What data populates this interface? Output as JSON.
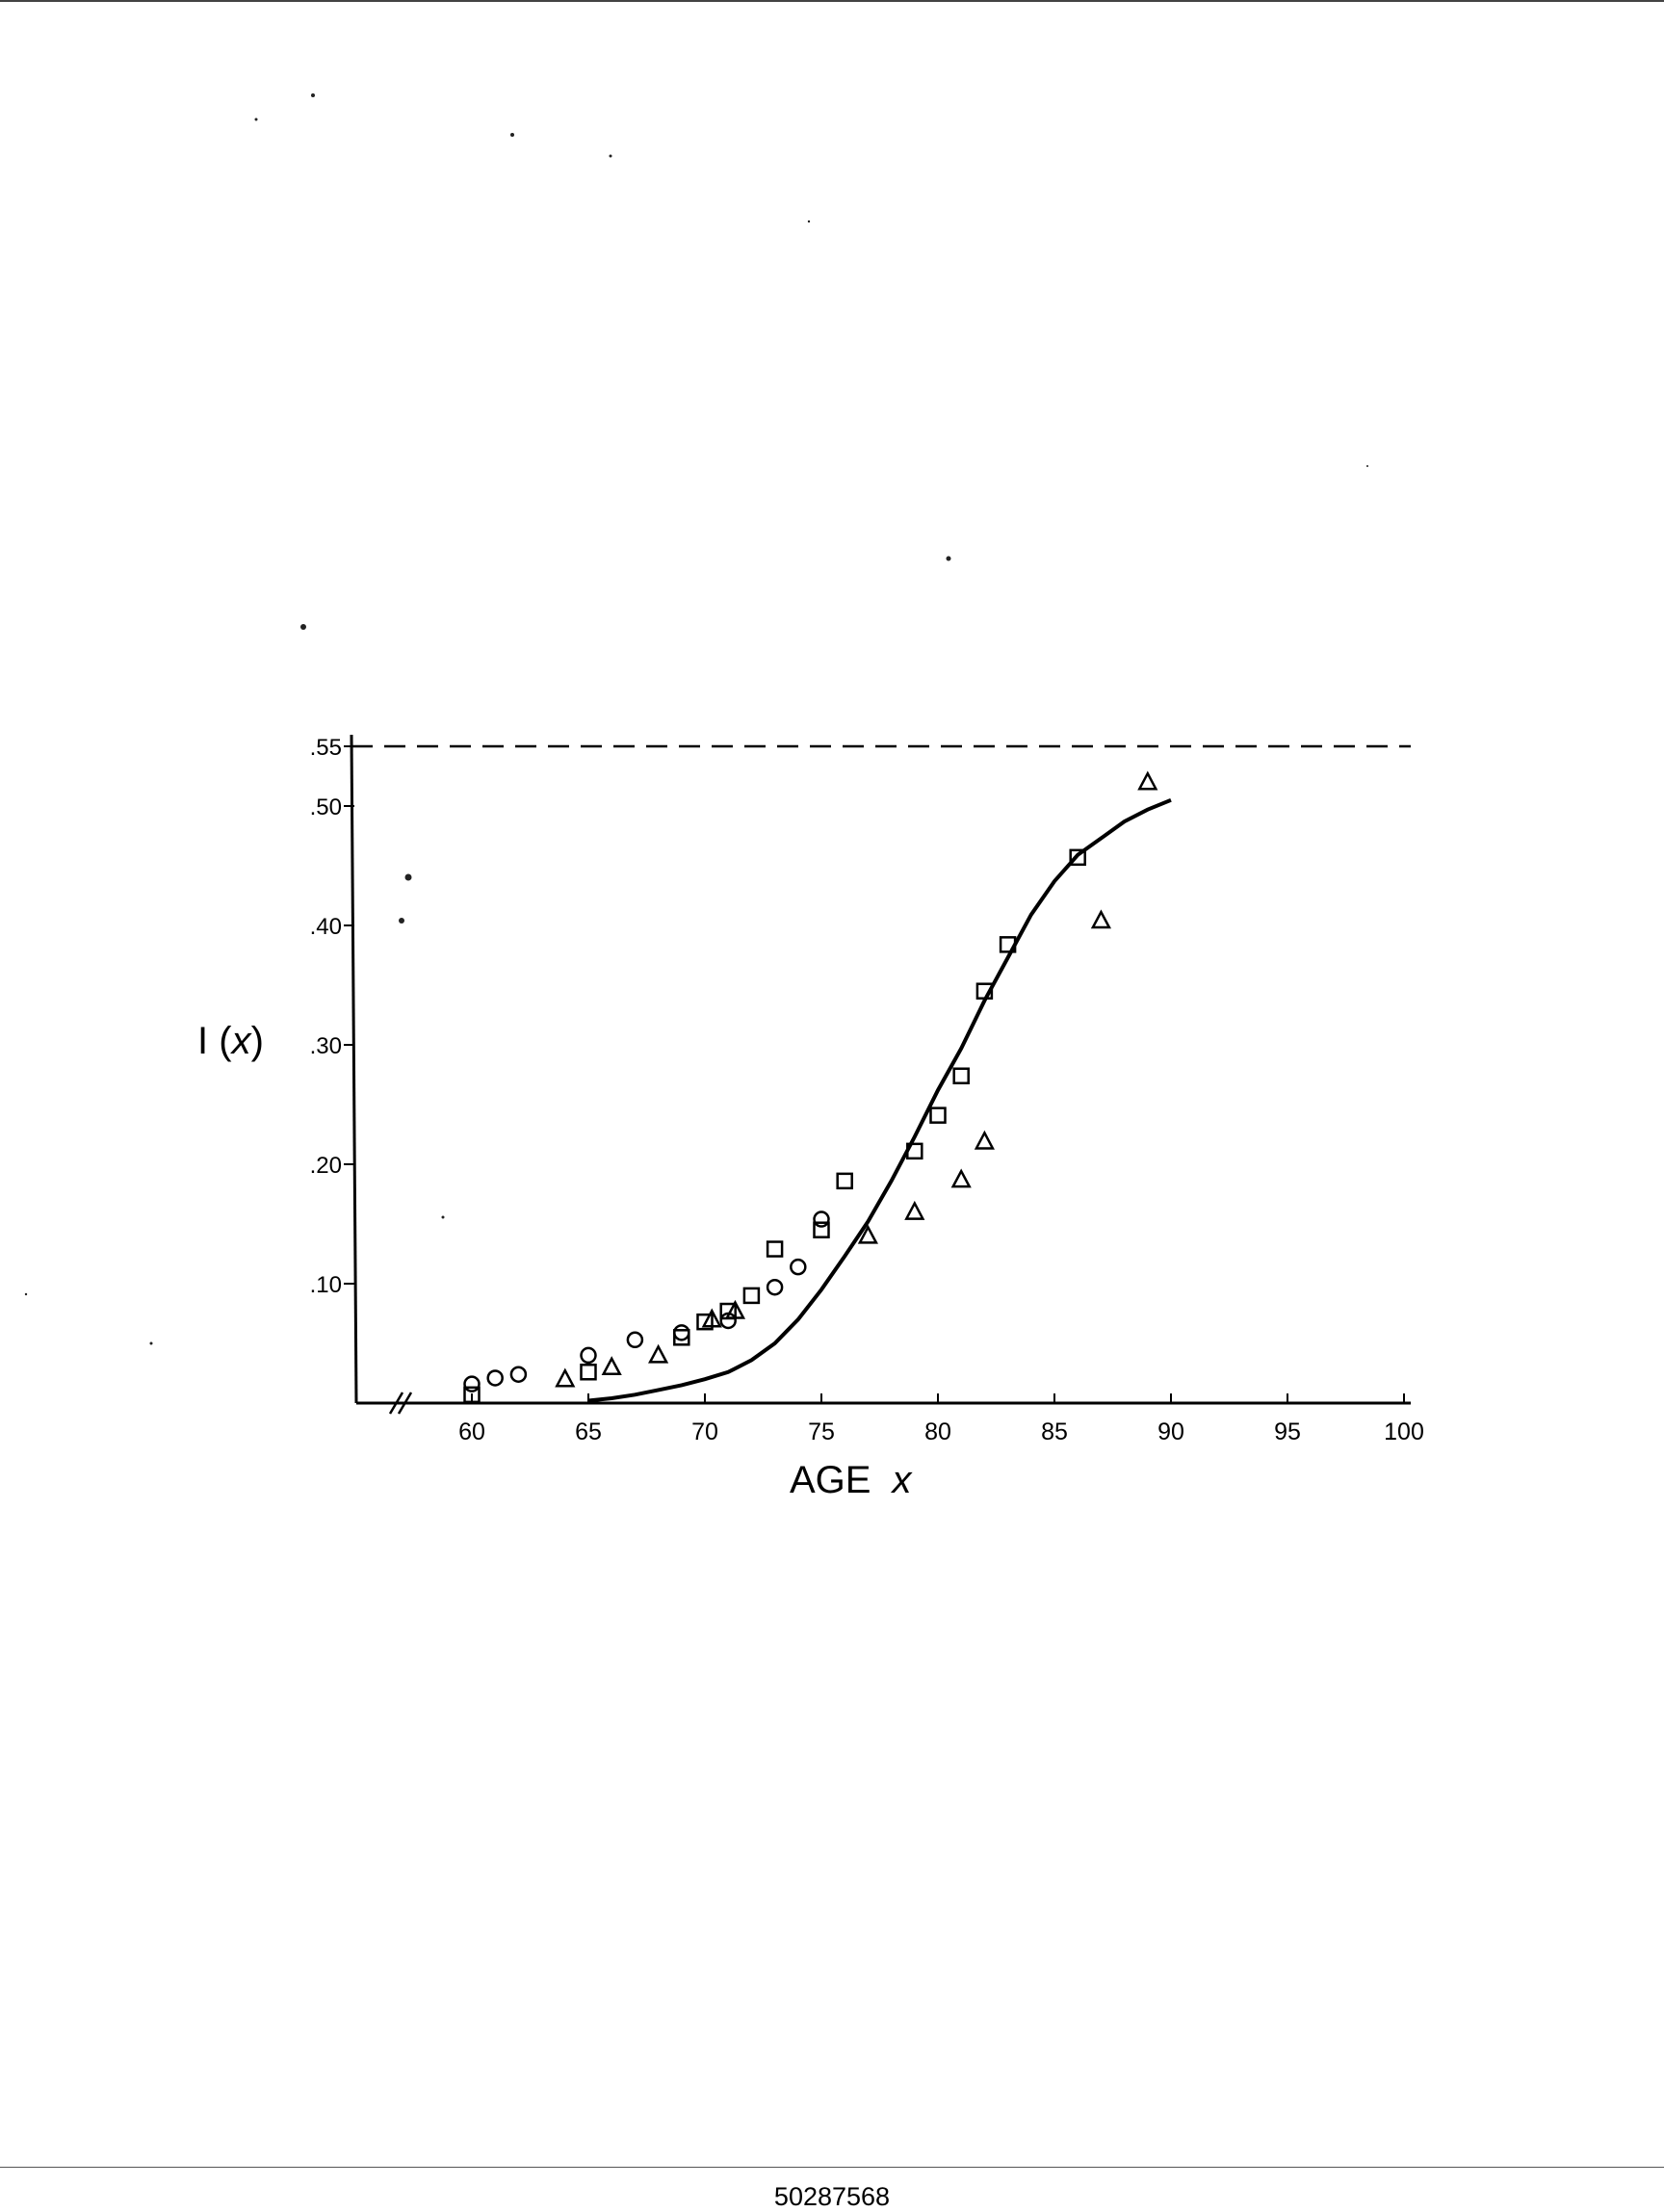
{
  "chart_data": {
    "type": "scatter",
    "ylabel_prefix": "I",
    "ylabel_var": "x",
    "xlabel_main": "AGE",
    "xlabel_var": "x",
    "xlim": [
      55,
      100
    ],
    "ylim": [
      0,
      0.55
    ],
    "x_ticks": [
      "60",
      "65",
      "70",
      "75",
      "80",
      "85",
      "90",
      "95",
      "100"
    ],
    "y_ticks": [
      ".10",
      ".20",
      ".30",
      ".40",
      ".50",
      ".55"
    ],
    "asymptote": 0.55,
    "series": [
      {
        "marker": "circle",
        "points": [
          [
            60,
            0.016
          ],
          [
            61,
            0.021
          ],
          [
            62,
            0.024
          ],
          [
            65,
            0.04
          ],
          [
            67,
            0.053
          ],
          [
            69,
            0.059
          ],
          [
            71,
            0.069
          ],
          [
            73,
            0.097
          ],
          [
            74,
            0.114
          ],
          [
            75,
            0.154
          ]
        ]
      },
      {
        "marker": "square",
        "points": [
          [
            60,
            0.007
          ],
          [
            65,
            0.026
          ],
          [
            69,
            0.055
          ],
          [
            70,
            0.068
          ],
          [
            71,
            0.077
          ],
          [
            72,
            0.09
          ],
          [
            73,
            0.129
          ],
          [
            75,
            0.145
          ],
          [
            76,
            0.186
          ],
          [
            79,
            0.211
          ],
          [
            80,
            0.241
          ],
          [
            81,
            0.274
          ],
          [
            82,
            0.345
          ],
          [
            83,
            0.384
          ],
          [
            86,
            0.457
          ]
        ]
      },
      {
        "marker": "triangle",
        "points": [
          [
            64,
            0.02
          ],
          [
            66,
            0.03
          ],
          [
            68,
            0.04
          ],
          [
            70.3,
            0.07
          ],
          [
            71.3,
            0.077
          ],
          [
            77,
            0.14
          ],
          [
            79,
            0.16
          ],
          [
            81,
            0.187
          ],
          [
            82,
            0.219
          ],
          [
            87,
            0.404
          ],
          [
            89,
            0.52
          ]
        ]
      }
    ],
    "curve": [
      [
        65,
        0.002
      ],
      [
        66,
        0.004
      ],
      [
        67,
        0.007
      ],
      [
        68,
        0.011
      ],
      [
        69,
        0.015
      ],
      [
        70,
        0.02
      ],
      [
        71,
        0.026
      ],
      [
        72,
        0.036
      ],
      [
        73,
        0.05
      ],
      [
        74,
        0.07
      ],
      [
        75,
        0.095
      ],
      [
        76,
        0.123
      ],
      [
        77,
        0.152
      ],
      [
        78,
        0.186
      ],
      [
        79,
        0.223
      ],
      [
        80,
        0.262
      ],
      [
        81,
        0.297
      ],
      [
        82,
        0.337
      ],
      [
        83,
        0.373
      ],
      [
        84,
        0.409
      ],
      [
        85,
        0.437
      ],
      [
        86,
        0.459
      ],
      [
        87,
        0.473
      ],
      [
        88,
        0.487
      ],
      [
        89,
        0.497
      ],
      [
        90,
        0.505
      ]
    ]
  },
  "footer": {
    "doc_number": "50287568"
  }
}
